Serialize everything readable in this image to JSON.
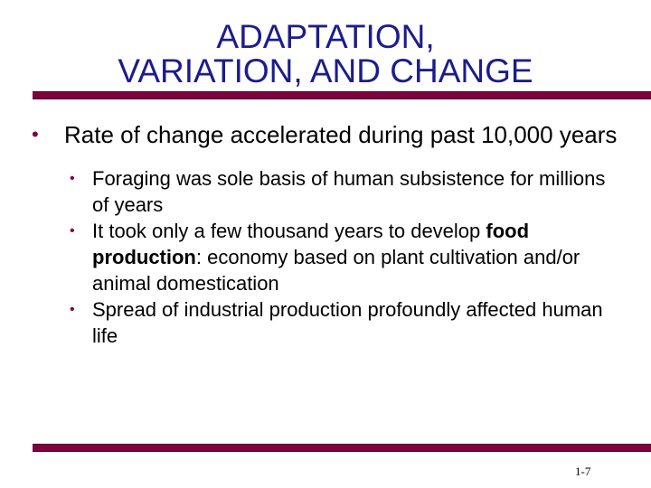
{
  "slide": {
    "title_line1": "ADAPTATION,",
    "title_line2": "VARIATION, AND CHANGE",
    "bullet_main": "Rate of change accelerated during past 10,000 years",
    "sub_bullets": [
      {
        "text": "Foraging was sole basis of human subsistence for millions of years"
      },
      {
        "before": "It took only a few thousand years to develop ",
        "term": "food production",
        "after": ": economy based on plant cultivation and/or animal  domestication"
      },
      {
        "text": "Spread of industrial production profoundly affected human life"
      }
    ],
    "page_number": "1-7"
  },
  "colors": {
    "title": "#1c1c8c",
    "rule": "#800040",
    "bullet": "#800040"
  },
  "icons": {
    "bullet": "bullet-dot-icon"
  }
}
